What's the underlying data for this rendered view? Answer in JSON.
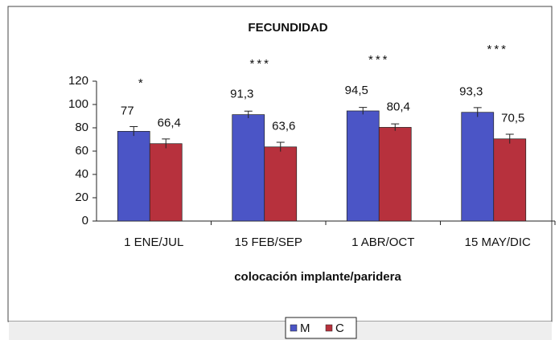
{
  "chart_data": {
    "type": "bar",
    "title": "FECUNDIDAD",
    "x_label": "colocación implante/paridera",
    "categories": [
      "1 ENE/JUL",
      "15 FEB/SEP",
      "1 ABR/OCT",
      "15 MAY/DIC"
    ],
    "annotations": [
      "*",
      "***",
      "***",
      "***"
    ],
    "series": [
      {
        "name": "M",
        "color": "#4b55c6",
        "values": [
          77,
          91.3,
          94.5,
          93.3
        ],
        "value_labels": [
          "77",
          "91,3",
          "94,5",
          "93,3"
        ],
        "errors": [
          4,
          3,
          3,
          4
        ]
      },
      {
        "name": "C",
        "color": "#b7313d",
        "values": [
          66.4,
          63.6,
          80.4,
          70.5
        ],
        "value_labels": [
          "66,4",
          "63,6",
          "80,4",
          "70,5"
        ],
        "errors": [
          4,
          4,
          3,
          4
        ]
      }
    ],
    "ylim": [
      0,
      120
    ],
    "yticks": [
      0,
      20,
      40,
      60,
      80,
      100,
      120
    ],
    "legend": "bottom"
  }
}
